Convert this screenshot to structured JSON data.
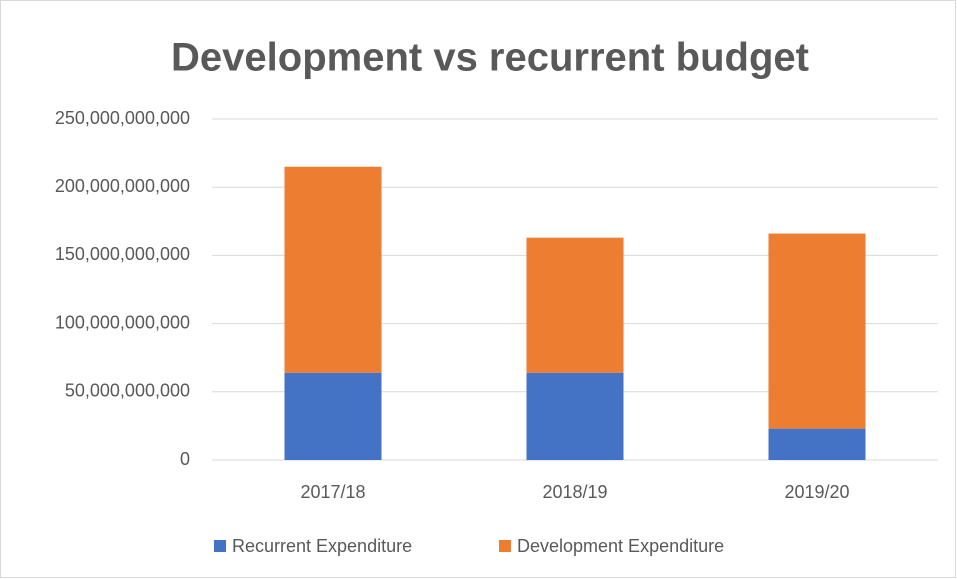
{
  "chart_data": {
    "type": "stacked_bar",
    "title": "Development vs recurrent budget",
    "categories": [
      "2017/18",
      "2018/19",
      "2019/20"
    ],
    "series": [
      {
        "name": "Recurrent Expenditure",
        "color": "#4472c4",
        "values": [
          64000000000,
          64000000000,
          23000000000
        ]
      },
      {
        "name": "Development Expenditure",
        "color": "#ed7d31",
        "values": [
          151000000000,
          99000000000,
          143000000000
        ]
      }
    ],
    "ylim": [
      0,
      250000000000
    ],
    "yticks": [
      0,
      {
        "value": 50000000000,
        "label": "50,000,000,000"
      },
      {
        "value": 100000000000,
        "label": "100,000,000,000"
      },
      {
        "value": 150000000000,
        "label": "150,000,000,000"
      },
      {
        "value": 200000000000,
        "label": "200,000,000,000"
      },
      {
        "value": 250000000000,
        "label": "250,000,000,000"
      }
    ],
    "grid": true,
    "legend": "bottom"
  }
}
